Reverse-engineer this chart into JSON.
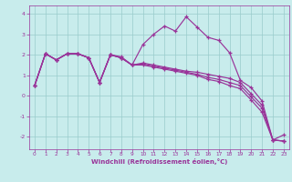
{
  "xlabel": "Windchill (Refroidissement éolien,°C)",
  "bg_color": "#c8ecec",
  "line_color": "#993399",
  "grid_color": "#99cccc",
  "xlim": [
    -0.5,
    23.5
  ],
  "ylim": [
    -2.6,
    4.4
  ],
  "xticks": [
    0,
    1,
    2,
    3,
    4,
    5,
    6,
    7,
    8,
    9,
    10,
    11,
    12,
    13,
    14,
    15,
    16,
    17,
    18,
    19,
    20,
    21,
    22,
    23
  ],
  "yticks": [
    -2,
    -1,
    0,
    1,
    2,
    3,
    4
  ],
  "line1_x": [
    0,
    1,
    2,
    3,
    4,
    5,
    6,
    7,
    8,
    9,
    10,
    11,
    12,
    13,
    14,
    15,
    16,
    17,
    18,
    19,
    20,
    21,
    22,
    23
  ],
  "line1_y": [
    0.5,
    2.05,
    1.75,
    2.05,
    2.05,
    1.85,
    0.65,
    2.0,
    1.9,
    1.5,
    2.5,
    3.0,
    3.4,
    3.15,
    3.85,
    3.35,
    2.85,
    2.7,
    2.1,
    0.75,
    0.4,
    -0.25,
    -2.15,
    -1.9
  ],
  "line2_x": [
    0,
    1,
    2,
    3,
    4,
    5,
    6,
    7,
    8,
    9,
    10,
    11,
    12,
    13,
    14,
    15,
    16,
    17,
    18,
    19,
    20,
    21,
    22,
    23
  ],
  "line2_y": [
    0.5,
    2.05,
    1.75,
    2.05,
    2.05,
    1.85,
    0.65,
    2.0,
    1.85,
    1.5,
    1.6,
    1.5,
    1.4,
    1.3,
    1.2,
    1.15,
    1.05,
    0.95,
    0.85,
    0.65,
    0.1,
    -0.45,
    -2.15,
    -2.2
  ],
  "line3_x": [
    0,
    1,
    2,
    3,
    4,
    5,
    6,
    7,
    8,
    9,
    10,
    11,
    12,
    13,
    14,
    15,
    16,
    17,
    18,
    19,
    20,
    21,
    22,
    23
  ],
  "line3_y": [
    0.5,
    2.05,
    1.75,
    2.05,
    2.05,
    1.85,
    0.65,
    2.0,
    1.85,
    1.5,
    1.55,
    1.45,
    1.35,
    1.25,
    1.15,
    1.05,
    0.9,
    0.8,
    0.65,
    0.5,
    -0.05,
    -0.6,
    -2.15,
    -2.2
  ],
  "line4_x": [
    0,
    1,
    2,
    3,
    4,
    5,
    6,
    7,
    8,
    9,
    10,
    11,
    12,
    13,
    14,
    15,
    16,
    17,
    18,
    19,
    20,
    21,
    22,
    23
  ],
  "line4_y": [
    0.5,
    2.05,
    1.75,
    2.05,
    2.05,
    1.85,
    0.65,
    2.0,
    1.85,
    1.5,
    1.5,
    1.4,
    1.3,
    1.2,
    1.1,
    1.0,
    0.8,
    0.7,
    0.5,
    0.35,
    -0.2,
    -0.8,
    -2.15,
    -2.2
  ]
}
